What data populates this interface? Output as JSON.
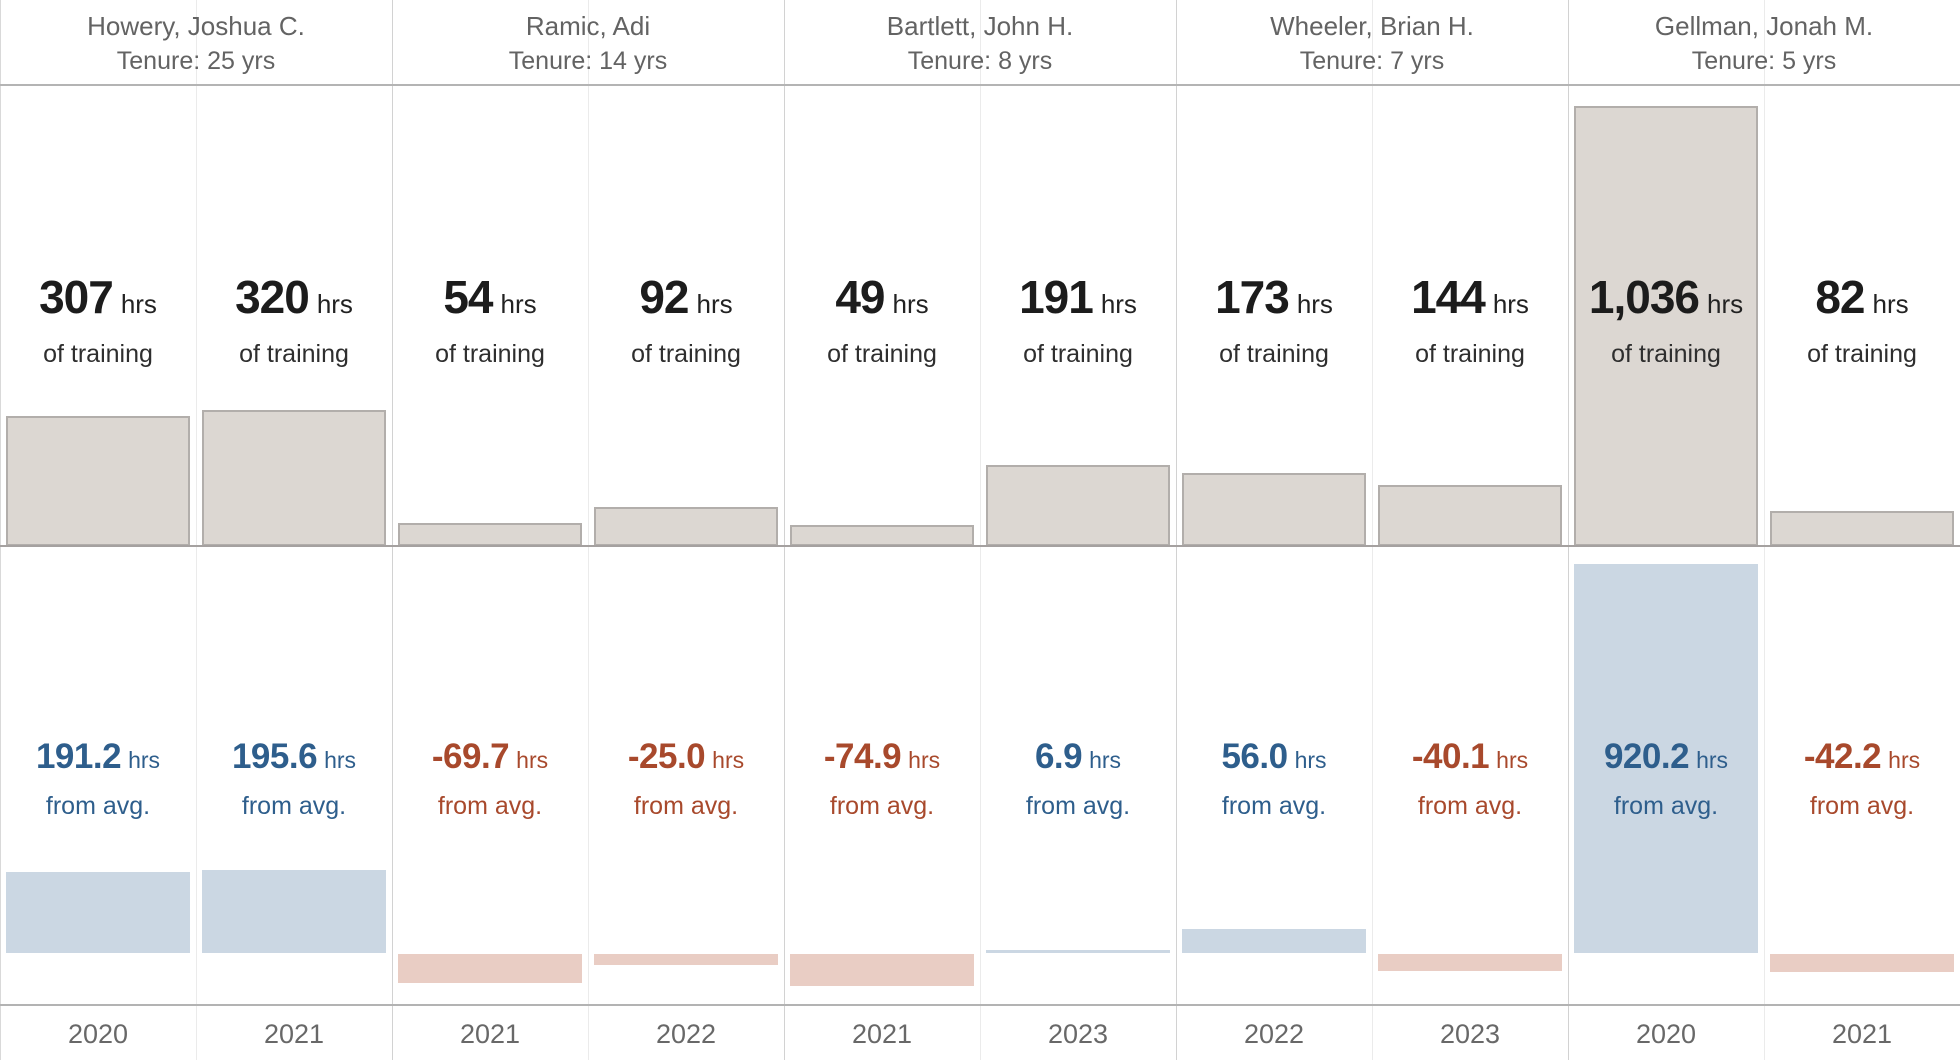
{
  "labels": {
    "hours_unit": "hrs",
    "training_caption": "of training",
    "avg_caption": "from avg."
  },
  "colors": {
    "positive_text": "#2e5e8c",
    "negative_text": "#a8492c",
    "positive_bar": "#cbd7e3",
    "negative_bar": "#e9cdc4",
    "training_bar_fill": "#dcd7d2",
    "training_bar_border": "#b2aeab"
  },
  "people": [
    {
      "name": "Howery, Joshua C.",
      "tenure": "Tenure: 25 yrs"
    },
    {
      "name": "Ramic, Adi",
      "tenure": "Tenure: 14 yrs"
    },
    {
      "name": "Bartlett, John H.",
      "tenure": "Tenure: 8 yrs"
    },
    {
      "name": "Wheeler, Brian H.",
      "tenure": "Tenure: 7 yrs"
    },
    {
      "name": "Gellman, Jonah M.",
      "tenure": "Tenure: 5 yrs"
    }
  ],
  "columns": [
    {
      "person": "Howery, Joshua C.",
      "year": "2020",
      "hours_label": "307",
      "delta_label": "191.2"
    },
    {
      "person": "Howery, Joshua C.",
      "year": "2021",
      "hours_label": "320",
      "delta_label": "195.6"
    },
    {
      "person": "Ramic, Adi",
      "year": "2021",
      "hours_label": "54",
      "delta_label": "-69.7"
    },
    {
      "person": "Ramic, Adi",
      "year": "2022",
      "hours_label": "92",
      "delta_label": "-25.0"
    },
    {
      "person": "Bartlett, John H.",
      "year": "2021",
      "hours_label": "49",
      "delta_label": "-74.9"
    },
    {
      "person": "Bartlett, John H.",
      "year": "2023",
      "hours_label": "191",
      "delta_label": "6.9"
    },
    {
      "person": "Wheeler, Brian H.",
      "year": "2022",
      "hours_label": "173",
      "delta_label": "56.0"
    },
    {
      "person": "Wheeler, Brian H.",
      "year": "2023",
      "hours_label": "144",
      "delta_label": "-40.1"
    },
    {
      "person": "Gellman, Jonah M.",
      "year": "2020",
      "hours_label": "1,036",
      "delta_label": "920.2"
    },
    {
      "person": "Gellman, Jonah M.",
      "year": "2021",
      "hours_label": "82",
      "delta_label": "-42.2"
    }
  ],
  "chart_data": {
    "type": "bar",
    "title": "",
    "layout": "small-multiples, 5 person panels x 2 year columns, two stacked bar rows per column",
    "categories": [
      "2020",
      "2021",
      "2021",
      "2022",
      "2021",
      "2023",
      "2022",
      "2023",
      "2020",
      "2021"
    ],
    "groups": [
      "Howery, Joshua C.",
      "Howery, Joshua C.",
      "Ramic, Adi",
      "Ramic, Adi",
      "Bartlett, John H.",
      "Bartlett, John H.",
      "Wheeler, Brian H.",
      "Wheeler, Brian H.",
      "Gellman, Jonah M.",
      "Gellman, Jonah M."
    ],
    "series": [
      {
        "name": "Hours of training",
        "values": [
          307,
          320,
          54,
          92,
          49,
          191,
          173,
          144,
          1036,
          82
        ]
      },
      {
        "name": "Hours from avg.",
        "values": [
          191.2,
          195.6,
          -69.7,
          -25.0,
          -74.9,
          6.9,
          56.0,
          -40.1,
          920.2,
          -42.2
        ]
      }
    ],
    "ylim_training": [
      0,
      1085
    ],
    "ylim_delta": [
      -120,
      920.2
    ],
    "grid": false,
    "legend": false
  }
}
